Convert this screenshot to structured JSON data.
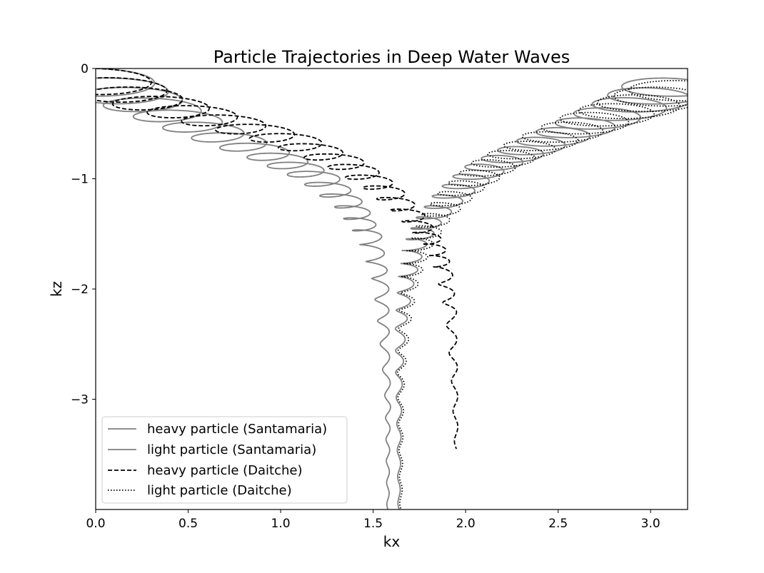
{
  "chart_data": {
    "type": "line",
    "title": "Particle Trajectories in Deep Water Waves",
    "xlabel": "kx",
    "ylabel": "kz",
    "xlim": [
      0,
      3.2
    ],
    "ylim": [
      -4,
      0
    ],
    "xticks": [
      0.0,
      0.5,
      1.0,
      1.5,
      2.0,
      2.5,
      3.0
    ],
    "xtick_labels": [
      "0.0",
      "0.5",
      "1.0",
      "1.5",
      "2.0",
      "2.5",
      "3.0"
    ],
    "yticks": [
      0,
      -1,
      -2,
      -3
    ],
    "ytick_labels": [
      "0",
      "−1",
      "−2",
      "−3"
    ],
    "grid": false,
    "legend_position": "lower-left",
    "series": [
      {
        "name": "heavy particle (Santamaria)",
        "style": "solid",
        "color": "#808080",
        "drift": [
          [
            0,
            0
          ],
          [
            0.25,
            -0.22
          ],
          [
            0.6,
            -0.5
          ],
          [
            0.95,
            -0.74
          ],
          [
            1.2,
            -0.95
          ],
          [
            1.38,
            -1.22
          ],
          [
            1.48,
            -1.5
          ],
          [
            1.54,
            -1.9
          ],
          [
            1.56,
            -2.4
          ],
          [
            1.58,
            -3.0
          ],
          [
            1.58,
            -3.5
          ],
          [
            1.58,
            -4.0
          ]
        ],
        "orbit_radius_surface": 0.3,
        "orbit_decay": 1.0,
        "orbit_steps": 28
      },
      {
        "name": "light particle (Santamaria)",
        "style": "solid",
        "color": "#808080",
        "drift": [
          [
            3.2,
            0
          ],
          [
            2.95,
            -0.22
          ],
          [
            2.65,
            -0.45
          ],
          [
            2.35,
            -0.67
          ],
          [
            2.1,
            -0.87
          ],
          [
            1.93,
            -1.1
          ],
          [
            1.8,
            -1.35
          ],
          [
            1.72,
            -1.6
          ],
          [
            1.68,
            -1.9
          ],
          [
            1.65,
            -2.3
          ],
          [
            1.64,
            -2.8
          ],
          [
            1.64,
            -3.4
          ],
          [
            1.64,
            -4.0
          ]
        ],
        "orbit_radius_surface": 0.3,
        "orbit_decay": 1.0,
        "orbit_steps": 30
      },
      {
        "name": "heavy particle (Daitche)",
        "style": "dashed",
        "color": "#000000",
        "drift": [
          [
            0,
            0
          ],
          [
            0.25,
            -0.2
          ],
          [
            0.65,
            -0.4
          ],
          [
            1.05,
            -0.6
          ],
          [
            1.35,
            -0.82
          ],
          [
            1.55,
            -1.05
          ],
          [
            1.7,
            -1.3
          ],
          [
            1.82,
            -1.55
          ],
          [
            1.88,
            -1.8
          ],
          [
            1.92,
            -2.2
          ],
          [
            1.94,
            -2.8
          ],
          [
            1.95,
            -3.45
          ]
        ],
        "orbit_radius_surface": 0.28,
        "orbit_decay": 1.0,
        "orbit_steps": 26
      },
      {
        "name": "light particle (Daitche)",
        "style": "dotted",
        "color": "#000000",
        "drift": [
          [
            3.25,
            -0.05
          ],
          [
            3.0,
            -0.2
          ],
          [
            2.7,
            -0.4
          ],
          [
            2.4,
            -0.62
          ],
          [
            2.15,
            -0.83
          ],
          [
            1.97,
            -1.07
          ],
          [
            1.84,
            -1.32
          ],
          [
            1.75,
            -1.6
          ],
          [
            1.7,
            -1.9
          ],
          [
            1.67,
            -2.3
          ],
          [
            1.65,
            -2.8
          ],
          [
            1.65,
            -3.4
          ],
          [
            1.65,
            -4.0
          ]
        ],
        "orbit_radius_surface": 0.32,
        "orbit_decay": 1.0,
        "orbit_steps": 30
      }
    ]
  }
}
